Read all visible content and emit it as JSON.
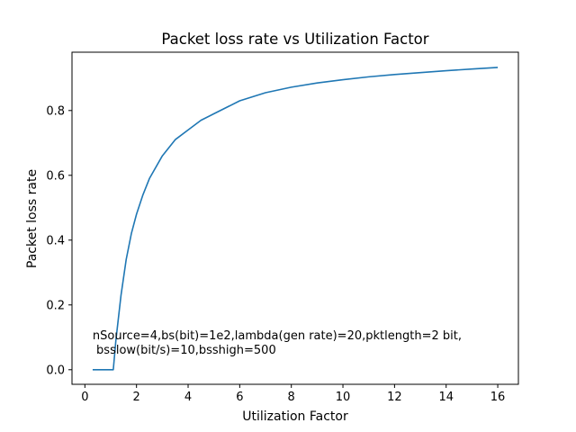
{
  "chart_data": {
    "type": "line",
    "title": "Packet loss rate vs Utilization Factor",
    "xlabel": "Utilization Factor",
    "ylabel": "Packet loss rate",
    "xlim": [
      -0.5,
      16.8
    ],
    "ylim": [
      -0.045,
      0.98
    ],
    "xticks": [
      0,
      2,
      4,
      6,
      8,
      10,
      12,
      14,
      16
    ],
    "yticks": [
      0.0,
      0.2,
      0.4,
      0.6,
      0.8
    ],
    "ytick_labels": [
      "0.0",
      "0.2",
      "0.4",
      "0.6",
      "0.8"
    ],
    "grid": false,
    "annotation": {
      "line1": "nSource=4,bs(bit)=1e2,lambda(gen rate)=20,pktlength=2 bit,",
      "line2": " bsslow(bit/s)=10,bsshigh=500",
      "x": 0.3,
      "y": 0.05
    },
    "series": [
      {
        "color": "#1f77b4",
        "x": [
          0.3,
          0.5,
          0.8,
          1.0,
          1.1,
          1.2,
          1.4,
          1.6,
          1.8,
          2.0,
          2.25,
          2.5,
          3.0,
          3.5,
          4.0,
          4.5,
          5.0,
          6.0,
          7.0,
          8.0,
          9.0,
          10.0,
          11.0,
          12.0,
          13.0,
          14.0,
          15.0,
          16.0
        ],
        "y": [
          0.0,
          0.0,
          0.0,
          0.0,
          0.0,
          0.09,
          0.23,
          0.34,
          0.42,
          0.48,
          0.54,
          0.59,
          0.66,
          0.71,
          0.74,
          0.77,
          0.79,
          0.83,
          0.855,
          0.872,
          0.885,
          0.895,
          0.904,
          0.911,
          0.917,
          0.923,
          0.928,
          0.933
        ]
      }
    ]
  }
}
